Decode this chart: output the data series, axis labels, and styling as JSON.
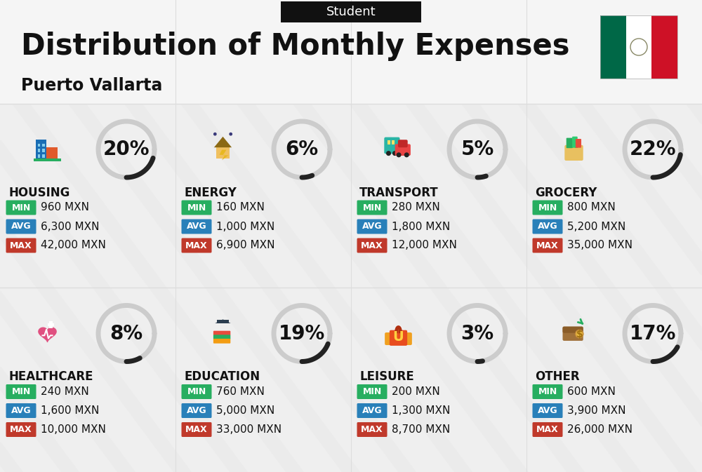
{
  "title": "Distribution of Monthly Expenses",
  "subtitle": "Student",
  "location": "Puerto Vallarta",
  "background_color": "#efefef",
  "categories": [
    {
      "name": "HOUSING",
      "pct": 20,
      "min_val": "960 MXN",
      "avg_val": "6,300 MXN",
      "max_val": "42,000 MXN",
      "row": 0,
      "col": 0
    },
    {
      "name": "ENERGY",
      "pct": 6,
      "min_val": "160 MXN",
      "avg_val": "1,000 MXN",
      "max_val": "6,900 MXN",
      "row": 0,
      "col": 1
    },
    {
      "name": "TRANSPORT",
      "pct": 5,
      "min_val": "280 MXN",
      "avg_val": "1,800 MXN",
      "max_val": "12,000 MXN",
      "row": 0,
      "col": 2
    },
    {
      "name": "GROCERY",
      "pct": 22,
      "min_val": "800 MXN",
      "avg_val": "5,200 MXN",
      "max_val": "35,000 MXN",
      "row": 0,
      "col": 3
    },
    {
      "name": "HEALTHCARE",
      "pct": 8,
      "min_val": "240 MXN",
      "avg_val": "1,600 MXN",
      "max_val": "10,000 MXN",
      "row": 1,
      "col": 0
    },
    {
      "name": "EDUCATION",
      "pct": 19,
      "min_val": "760 MXN",
      "avg_val": "5,000 MXN",
      "max_val": "33,000 MXN",
      "row": 1,
      "col": 1
    },
    {
      "name": "LEISURE",
      "pct": 3,
      "min_val": "200 MXN",
      "avg_val": "1,300 MXN",
      "max_val": "8,700 MXN",
      "row": 1,
      "col": 2
    },
    {
      "name": "OTHER",
      "pct": 17,
      "min_val": "600 MXN",
      "avg_val": "3,900 MXN",
      "max_val": "26,000 MXN",
      "row": 1,
      "col": 3
    }
  ],
  "color_min": "#27ae60",
  "color_avg": "#2980b9",
  "color_max": "#c0392b",
  "arc_dark": "#222222",
  "arc_light": "#cccccc",
  "flag_green": "#006847",
  "flag_white": "#FFFFFF",
  "flag_red": "#CE1126",
  "title_fontsize": 30,
  "subtitle_fontsize": 13,
  "pct_fontsize": 20,
  "cat_fontsize": 12,
  "val_fontsize": 11,
  "badge_fontsize": 9
}
